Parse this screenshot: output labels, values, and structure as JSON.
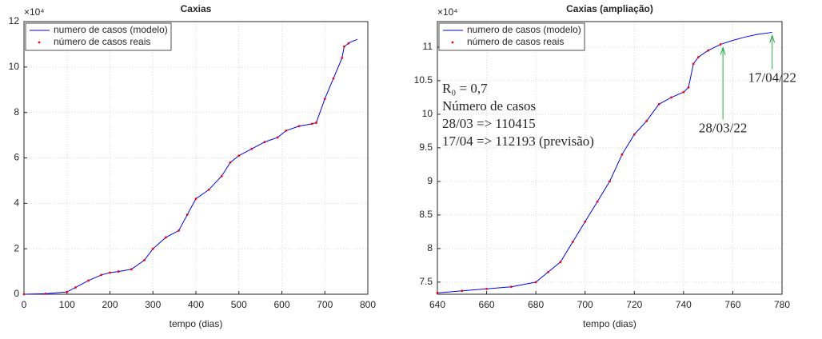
{
  "chart_data": [
    {
      "type": "line",
      "title": "Caxias",
      "xlabel": "tempo (dias)",
      "exponent": "×10⁴",
      "x": [
        0,
        50,
        100,
        120,
        150,
        180,
        200,
        220,
        250,
        280,
        300,
        330,
        360,
        380,
        400,
        430,
        460,
        480,
        500,
        530,
        560,
        590,
        610,
        640,
        670,
        680,
        700,
        720,
        740,
        745,
        755,
        760,
        776
      ],
      "series": [
        {
          "name": "numero de casos (modelo)",
          "color": "#0000ff",
          "style": "line",
          "values": [
            0,
            0.02,
            0.1,
            0.3,
            0.6,
            0.85,
            0.95,
            1.0,
            1.1,
            1.5,
            2.0,
            2.5,
            2.8,
            3.5,
            4.2,
            4.6,
            5.2,
            5.8,
            6.1,
            6.4,
            6.7,
            6.9,
            7.2,
            7.4,
            7.5,
            7.55,
            8.6,
            9.5,
            10.4,
            10.9,
            11.04,
            11.1,
            11.22
          ]
        },
        {
          "name": "número de casos reais",
          "color": "#ff0000",
          "style": "dots",
          "values": [
            0,
            0.02,
            0.1,
            0.3,
            0.6,
            0.85,
            0.95,
            1.0,
            1.1,
            1.5,
            2.0,
            2.5,
            2.8,
            3.5,
            4.2,
            4.6,
            5.2,
            5.8,
            6.1,
            6.4,
            6.7,
            6.9,
            7.2,
            7.4,
            7.5,
            7.55,
            8.6,
            9.5,
            10.4,
            10.9,
            11.04,
            null,
            null
          ]
        }
      ],
      "xlim": [
        0,
        800
      ],
      "xticks": [
        0,
        100,
        200,
        300,
        400,
        500,
        600,
        700,
        800
      ],
      "ylim": [
        0,
        12
      ],
      "yticks": [
        0,
        2,
        4,
        6,
        8,
        10,
        12
      ],
      "grid": true,
      "legend": "upper left"
    },
    {
      "type": "line",
      "title": "Caxias (ampliação)",
      "xlabel": "tempo (dias)",
      "exponent": "×10⁴",
      "x": [
        640,
        650,
        660,
        670,
        680,
        685,
        690,
        695,
        700,
        705,
        710,
        715,
        720,
        725,
        730,
        735,
        740,
        742,
        744,
        746,
        750,
        755,
        760,
        765,
        770,
        776
      ],
      "series": [
        {
          "name": "numero de casos (modelo)",
          "color": "#0000ff",
          "style": "line",
          "values": [
            7.34,
            7.37,
            7.4,
            7.43,
            7.5,
            7.65,
            7.8,
            8.1,
            8.4,
            8.7,
            9.0,
            9.4,
            9.7,
            9.9,
            10.15,
            10.25,
            10.33,
            10.4,
            10.75,
            10.85,
            10.95,
            11.04,
            11.1,
            11.15,
            11.19,
            11.22
          ]
        },
        {
          "name": "número de casos reais",
          "color": "#ff0000",
          "style": "dots",
          "values": [
            7.34,
            7.37,
            7.4,
            7.43,
            7.5,
            7.65,
            7.8,
            8.1,
            8.4,
            8.7,
            9.0,
            9.4,
            9.7,
            9.9,
            10.15,
            10.25,
            10.33,
            10.4,
            10.75,
            10.85,
            10.95,
            11.04,
            null,
            null,
            null,
            null
          ]
        }
      ],
      "xlim": [
        640,
        780
      ],
      "xticks": [
        640,
        660,
        680,
        700,
        720,
        740,
        760,
        780
      ],
      "ylim": [
        7.32,
        11.38
      ],
      "yticks": [
        7.5,
        8,
        8.5,
        9,
        9.5,
        10,
        10.5,
        11
      ],
      "grid": true,
      "legend": "upper left",
      "annotations": [
        {
          "text": "R₀ = 0,7",
          "color": "#22aa44"
        },
        {
          "text": "Número de casos",
          "color": "#22aa44"
        },
        {
          "text": "28/03 => 110415",
          "color": "#dd2222"
        },
        {
          "text": "17/04 => 112193 (previsão)",
          "color": "#3344cc"
        }
      ],
      "arrows": [
        {
          "text": "28/03/22",
          "x": 756,
          "y": 11.04,
          "color": "#22aa44"
        },
        {
          "text": "17/04/22",
          "x": 776,
          "y": 11.22,
          "color": "#22aa44"
        }
      ]
    }
  ]
}
